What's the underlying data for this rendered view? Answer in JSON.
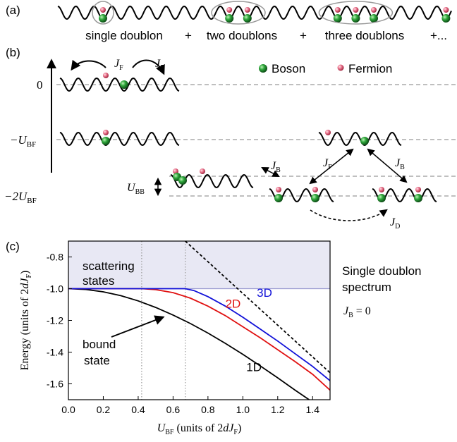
{
  "panel_a": {
    "label": "(a)",
    "terms": [
      "single doublon",
      "+",
      "two doublons",
      "+",
      "three doublons",
      "+..."
    ]
  },
  "panel_b": {
    "label": "(b)",
    "legend": {
      "boson": "Boson",
      "fermion": "Fermion"
    },
    "levels": {
      "zero": "0",
      "minus_ubf": "−U",
      "minus_ubf_sub": "BF",
      "minus_2ubf": "−2U",
      "minus_2ubf_sub": "BF"
    },
    "hopping": {
      "jf": "J",
      "jf_sub": "F",
      "jb": "J",
      "jb_sub": "B",
      "jd": "J",
      "jd_sub": "D",
      "ubb": "U",
      "ubb_sub": "BB"
    }
  },
  "panel_c": {
    "label": "(c)",
    "side_title": [
      "Single doublon",
      "spectrum"
    ],
    "jb_condition": "J",
    "jb_condition_sub": "B",
    "jb_condition_rest": " = 0",
    "annotations": {
      "scattering": [
        "scattering",
        "states"
      ],
      "bound": [
        "bound",
        "state"
      ]
    }
  },
  "colors": {
    "boson": "#1e8a2c",
    "fermion": "#e0607a",
    "scattering_band": "#e8e8f4",
    "line_1d": "#000000",
    "line_2d": "#e01010",
    "line_3d": "#1010d8",
    "dashed_level": "#aaaaaa"
  },
  "chart_data": {
    "type": "line",
    "xlabel": "U_BF (units of 2dJ_F)",
    "ylabel": "Energy (units of 2dJ_F)",
    "xlim": [
      0.0,
      1.5
    ],
    "ylim": [
      -1.7,
      -0.7
    ],
    "xticks": [
      "0.0",
      "0.2",
      "0.4",
      "0.6",
      "0.8",
      "1.0",
      "1.2",
      "1.4"
    ],
    "yticks": [
      "-0.8",
      "-1.0",
      "-1.2",
      "-1.4",
      "-1.6"
    ],
    "grid": false,
    "scattering_band": [
      -1.0,
      -0.7
    ],
    "vertical_dotted": [
      0.42,
      0.67
    ],
    "series": [
      {
        "name": "1D",
        "x": [
          0.0,
          0.1,
          0.2,
          0.3,
          0.4,
          0.5,
          0.6,
          0.7,
          0.8,
          0.9,
          1.0,
          1.1,
          1.2,
          1.3,
          1.38
        ],
        "y": [
          -1.0,
          -1.005,
          -1.02,
          -1.044,
          -1.077,
          -1.118,
          -1.166,
          -1.22,
          -1.28,
          -1.345,
          -1.414,
          -1.487,
          -1.562,
          -1.64,
          -1.7
        ]
      },
      {
        "name": "2D",
        "x": [
          0.0,
          0.3,
          0.42,
          0.5,
          0.6,
          0.7,
          0.8,
          0.9,
          1.0,
          1.1,
          1.2,
          1.3,
          1.4,
          1.5
        ],
        "y": [
          -1.0,
          -1.0,
          -1.0,
          -1.006,
          -1.025,
          -1.06,
          -1.11,
          -1.17,
          -1.24,
          -1.31,
          -1.385,
          -1.46,
          -1.54,
          -1.64
        ]
      },
      {
        "name": "3D",
        "x": [
          0.0,
          0.5,
          0.67,
          0.72,
          0.8,
          0.9,
          1.0,
          1.1,
          1.2,
          1.3,
          1.4,
          1.5
        ],
        "y": [
          -1.0,
          -1.0,
          -1.0,
          -1.012,
          -1.05,
          -1.11,
          -1.18,
          -1.255,
          -1.33,
          -1.41,
          -1.49,
          -1.58
        ]
      },
      {
        "name": "asymptote",
        "x": [
          0.67,
          1.5
        ],
        "y": [
          -0.7,
          -1.53
        ]
      }
    ]
  }
}
